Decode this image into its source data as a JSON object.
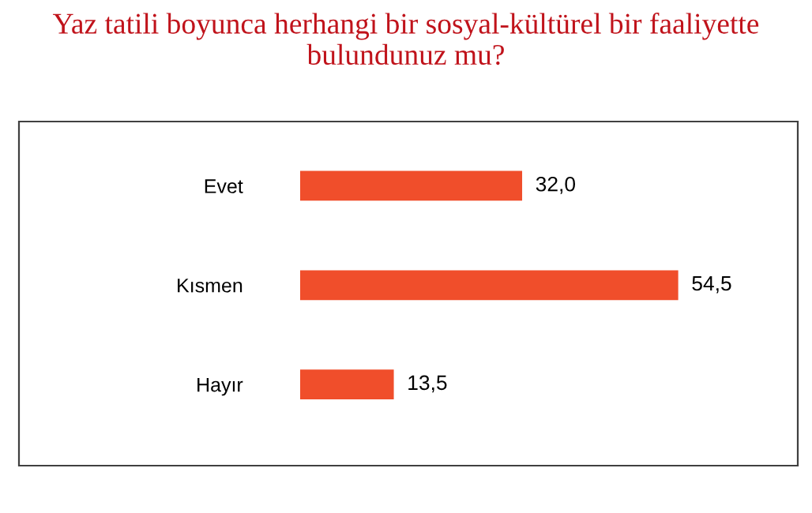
{
  "chart_data": {
    "type": "bar",
    "orientation": "horizontal",
    "title": "Yaz tatili boyunca herhangi bir sosyal-kültürel bir faaliyette bulundunuz mu?",
    "categories": [
      "Evet",
      "Kısmen",
      "Hayır"
    ],
    "values": [
      32.0,
      54.5,
      13.5
    ],
    "value_labels": [
      "32,0",
      "54,5",
      "13,5"
    ],
    "color": "#f04e2b",
    "grid": false,
    "legend": false
  }
}
